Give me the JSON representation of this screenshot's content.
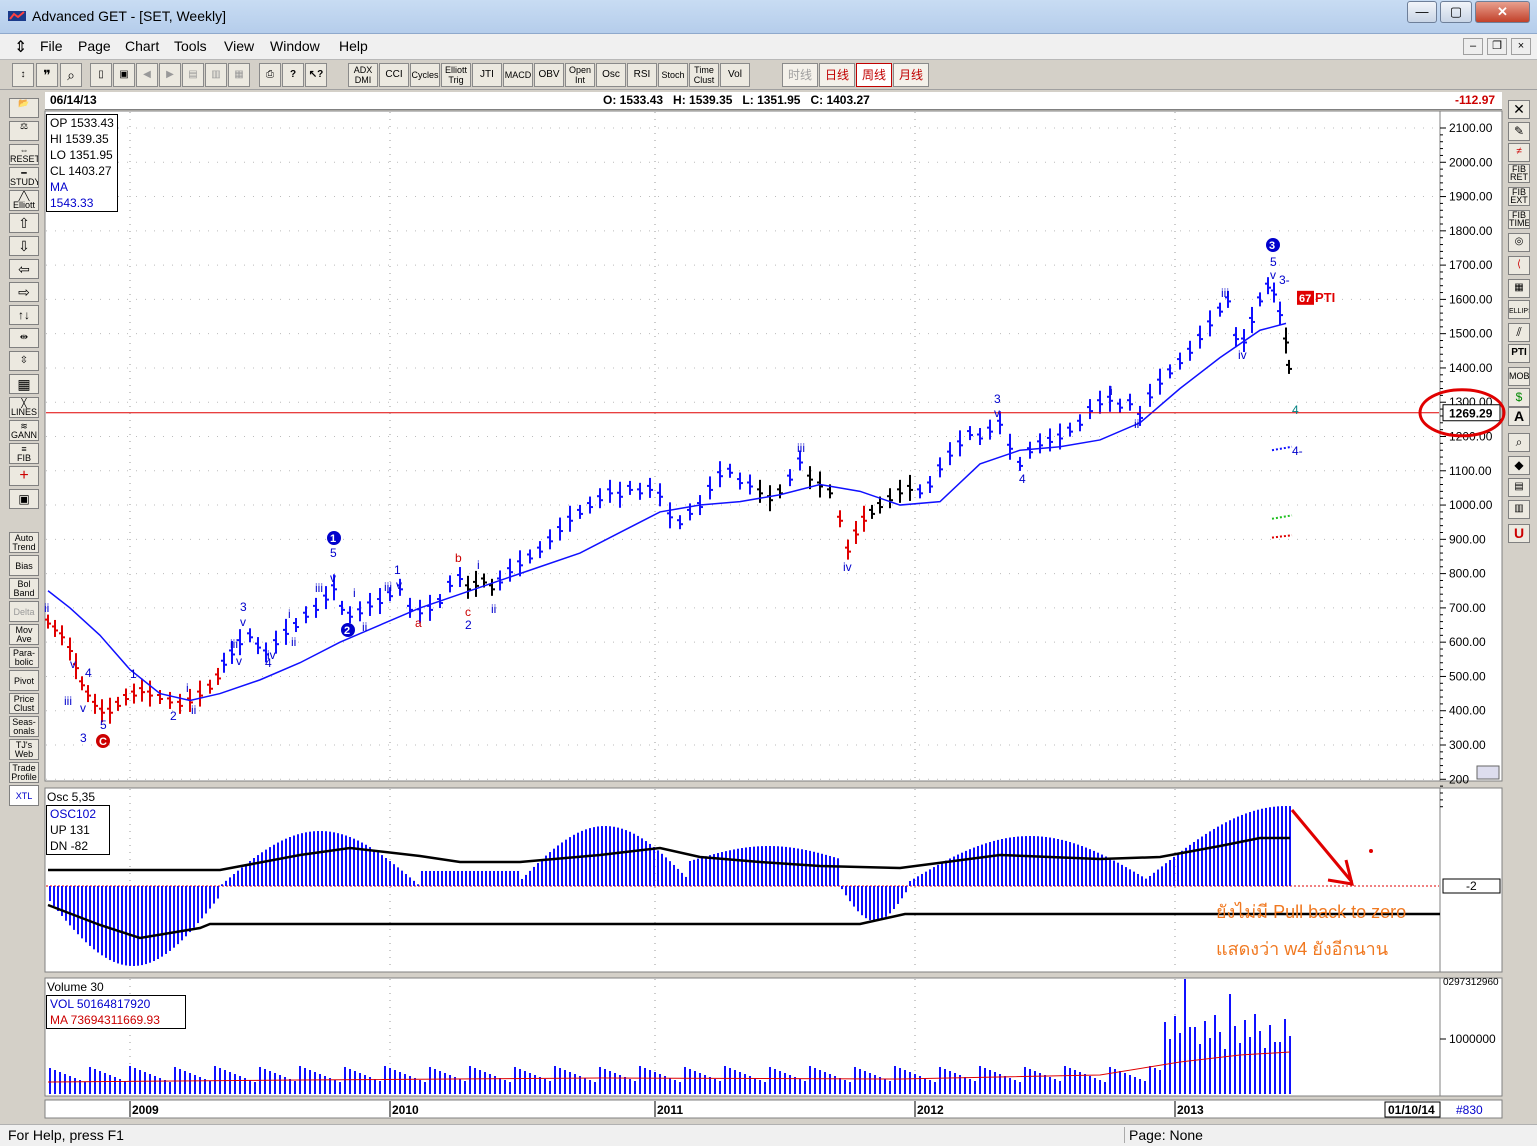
{
  "window": {
    "title": "Advanced GET - [SET, Weekly]",
    "min": "—",
    "max": "▢",
    "close": "✕"
  },
  "menu": [
    "File",
    "Page",
    "Chart",
    "Tools",
    "View",
    "Window",
    "Help"
  ],
  "toolbar": {
    "indicators": [
      "ADX DMI",
      "CCI",
      "Cycles",
      "Elliott Trig",
      "JTI",
      "MACD",
      "OBV",
      "Open Int",
      "Osc",
      "RSI",
      "Stoch",
      "Time Clust",
      "Vol"
    ],
    "periods": [
      "时线",
      "日线",
      "周线",
      "月线"
    ]
  },
  "left_tools": [
    "RESET",
    "STUDY",
    "Elliott",
    "LINES",
    "GANN",
    "FIB",
    "Auto Trend",
    "Bias",
    "Bol Band",
    "Delta",
    "Mov Ave",
    "Para- bolic",
    "Pivot",
    "Price Clust",
    "Seas- onals",
    "TJ's Web",
    "Trade Profile",
    "XTL"
  ],
  "right_tools": [
    "FIB RET",
    "FIB EXT",
    "FIB TIME",
    "ELLIPS",
    "PTI",
    "MOB",
    "A",
    "U"
  ],
  "header": {
    "date": "06/14/13",
    "ohlc": "O: 1533.43   H: 1539.35   L: 1351.95   C: 1403.27",
    "change": "-112.97"
  },
  "price_legend": {
    "op": "OP 1533.43",
    "hi": "HI  1539.35",
    "lo": "LO  1351.95",
    "cl": "CL  1403.27",
    "ma": "MA 1543.33"
  },
  "price_scale": [
    "2100.00",
    "2000.00",
    "1900.00",
    "1800.00",
    "1700.00",
    "1600.00",
    "1500.00",
    "1400.00",
    "1300.00",
    "1200.00",
    "1100.00",
    "1000.00",
    "900.00",
    "800.00",
    "700.00",
    "600.00",
    "500.00",
    "400.00",
    "300.00",
    "200"
  ],
  "price_marker": "1269.29",
  "pti": {
    "value": "67",
    "label": "PTI"
  },
  "osc_legend": {
    "title": "Osc 5,35",
    "osc": "OSC102",
    "up": "UP   131",
    "dn": "DN  -82"
  },
  "osc_marker": "-2",
  "annotation": {
    "line1": "ยังไม่มี Pull back to zero",
    "line2": "แสดงว่า w4 ยังอีกนาน"
  },
  "vol_legend": {
    "title": "Volume 30",
    "vol": "VOL 50164817920",
    "ma": "MA  73694311669.93"
  },
  "vol_scale": [
    "1000000",
    "0297312960"
  ],
  "years": [
    "2009",
    "2010",
    "2011",
    "2012",
    "2013"
  ],
  "end_date": "01/10/14",
  "bar_count": "#830",
  "status": {
    "help": "For Help, press F1",
    "page": "Page: None"
  },
  "wave_labels": [
    {
      "t": "ii",
      "c": "#0000cc"
    },
    {
      "t": "v",
      "c": "#0000cc"
    },
    {
      "t": "iii",
      "c": "#0000cc"
    },
    {
      "t": "4",
      "c": "#0000cc"
    },
    {
      "t": "v",
      "c": "#0000cc"
    },
    {
      "t": "3",
      "c": "#0000cc"
    },
    {
      "t": "5",
      "c": "#0000cc"
    },
    {
      "t": "1",
      "c": "#0000cc"
    },
    {
      "t": "i",
      "c": "#0000cc"
    },
    {
      "t": "2",
      "c": "#0000cc"
    },
    {
      "t": "ii",
      "c": "#0000cc"
    },
    {
      "t": "3",
      "c": "#0000cc"
    },
    {
      "t": "v",
      "c": "#0000cc"
    },
    {
      "t": "iii",
      "c": "#0000cc"
    },
    {
      "t": "v",
      "c": "#0000cc"
    },
    {
      "t": "4",
      "c": "#0000cc"
    },
    {
      "t": "i",
      "c": "#0000cc"
    },
    {
      "t": "ii",
      "c": "#0000cc"
    },
    {
      "t": "5",
      "c": "#0000cc"
    },
    {
      "t": "iii",
      "c": "#0000cc"
    },
    {
      "t": "v",
      "c": "#0000cc"
    },
    {
      "t": "i",
      "c": "#0000cc"
    },
    {
      "t": "ii",
      "c": "#0000cc"
    },
    {
      "t": "iv",
      "c": "#0000cc"
    },
    {
      "t": "1",
      "c": "#0000cc"
    },
    {
      "t": "iii",
      "c": "#0000cc"
    },
    {
      "t": "v",
      "c": "#0000cc"
    },
    {
      "t": "a",
      "c": "#cc0000"
    },
    {
      "t": "b",
      "c": "#cc0000"
    },
    {
      "t": "c",
      "c": "#cc0000"
    },
    {
      "t": "2",
      "c": "#0000cc"
    },
    {
      "t": "i",
      "c": "#0000cc"
    },
    {
      "t": "ii",
      "c": "#0000cc"
    },
    {
      "t": "iii",
      "c": "#0000cc"
    },
    {
      "t": "iv",
      "c": "#0000cc"
    },
    {
      "t": "3",
      "c": "#0000cc"
    },
    {
      "t": "v",
      "c": "#0000cc"
    },
    {
      "t": "4",
      "c": "#0000cc"
    },
    {
      "t": "i",
      "c": "#0000cc"
    },
    {
      "t": "ii",
      "c": "#0000cc"
    },
    {
      "t": "iii",
      "c": "#0000cc"
    },
    {
      "t": "iv",
      "c": "#0000cc"
    },
    {
      "t": "5",
      "c": "#0000cc"
    },
    {
      "t": "v",
      "c": "#0000cc"
    },
    {
      "t": "3-",
      "c": "#0000cc"
    },
    {
      "t": "4",
      "c": "#008080"
    },
    {
      "t": "4-",
      "c": "#0000cc"
    }
  ],
  "circle_labels": [
    {
      "t": "C",
      "c": "#cc0000"
    },
    {
      "t": "1",
      "c": "#0000cc"
    },
    {
      "t": "2",
      "c": "#0000cc"
    },
    {
      "t": "3",
      "c": "#0000cc"
    }
  ]
}
